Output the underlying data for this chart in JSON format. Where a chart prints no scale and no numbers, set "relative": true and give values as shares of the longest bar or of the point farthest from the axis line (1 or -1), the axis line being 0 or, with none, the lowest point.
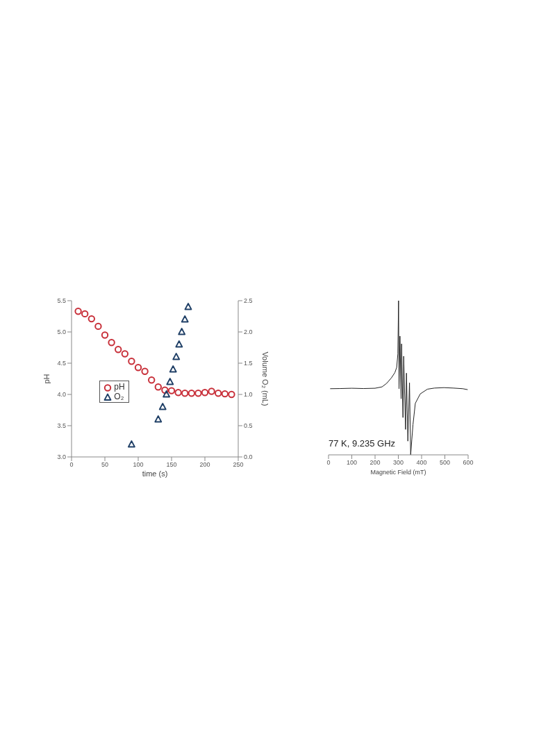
{
  "chart_data": [
    {
      "type": "scatter",
      "xlabel": "time (s)",
      "ylabel": "pH",
      "y2label": "Volume O₂ (mL)",
      "xlim": [
        0,
        250
      ],
      "xticks": [
        0,
        50,
        100,
        150,
        200,
        250
      ],
      "ylim": [
        3,
        5.5
      ],
      "yticks": [
        {
          "value": 3,
          "label": "3.0"
        },
        3.5,
        {
          "value": 4,
          "label": "4.0"
        },
        4.5,
        {
          "value": 5,
          "label": "5.0"
        },
        5.5
      ],
      "y2lim": [
        0,
        2.5
      ],
      "y2ticks": [
        {
          "value": 0,
          "label": "0.0"
        },
        0.5,
        {
          "value": 1,
          "label": "1.0"
        },
        1.5,
        {
          "value": 2,
          "label": "2.0"
        },
        2.5
      ],
      "legend": "left",
      "grid": false,
      "series": [
        {
          "name": "pH",
          "color": "#c8303a",
          "marker": "circle",
          "x": [
            10,
            20,
            30,
            40,
            50,
            60,
            70,
            80,
            90,
            100,
            110,
            120,
            130,
            140,
            150,
            160,
            170,
            180,
            190,
            200,
            210,
            220,
            230,
            240
          ],
          "values": [
            5.33,
            5.29,
            5.21,
            5.09,
            4.95,
            4.83,
            4.72,
            4.65,
            4.53,
            4.43,
            4.37,
            4.23,
            4.12,
            4.07,
            4.06,
            4.03,
            4.02,
            4.02,
            4.02,
            4.03,
            4.05,
            4.02,
            4.01,
            4.0
          ]
        },
        {
          "name": "O₂",
          "color": "#1f3f66",
          "marker": "triangle",
          "axis": "y2",
          "x": [
            90,
            130,
            136.7,
            142.3,
            147.7,
            152.3,
            157,
            161.3,
            165.3,
            170,
            175
          ],
          "values": [
            0.2,
            0.6,
            0.8,
            1.0,
            1.2,
            1.4,
            1.6,
            1.8,
            2.0,
            2.2,
            2.4
          ]
        }
      ]
    },
    {
      "type": "line",
      "relative": true,
      "xlabel": "Magnetic Field (mT)",
      "xlim": [
        0,
        600
      ],
      "xticks": [
        0,
        100,
        200,
        300,
        400,
        500,
        600
      ],
      "annotations": [
        "77 K, 9.235 GHz"
      ],
      "marker": "none",
      "series": [
        {
          "color": "#222222",
          "x": [
            7,
            50,
            100,
            150,
            200,
            230,
            250,
            270,
            285,
            293,
            298,
            301,
            303,
            307,
            312,
            314,
            320,
            323,
            331,
            335,
            341,
            348,
            353,
            358,
            363,
            373,
            394,
            425,
            455,
            496,
            537,
            577,
            598
          ],
          "values": [
            0.429,
            0.43,
            0.432,
            0.43,
            0.432,
            0.441,
            0.464,
            0.499,
            0.533,
            0.567,
            0.655,
            1,
            0.429,
            0.77,
            0.364,
            0.72,
            0.242,
            0.64,
            0.165,
            0.53,
            0.089,
            0.467,
            0,
            0.1,
            0.196,
            0.334,
            0.395,
            0.426,
            0.433,
            0.436,
            0.433,
            0.429,
            0.423
          ]
        }
      ]
    }
  ]
}
